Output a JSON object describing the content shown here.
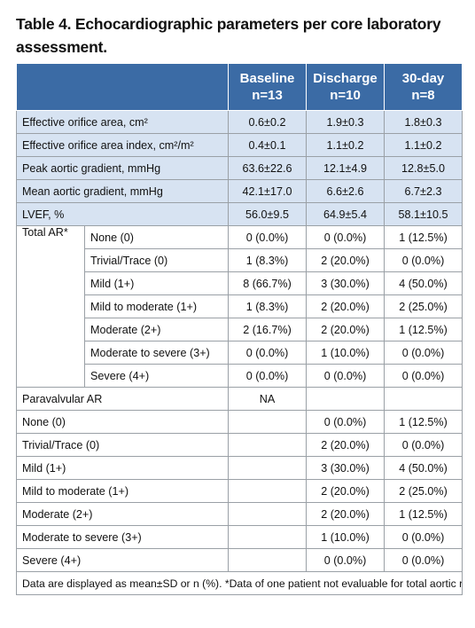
{
  "title": "Table 4. Echocardiographic parameters per core laboratory assessment.",
  "header": {
    "baseline": "Baseline",
    "baseline_n": "n=13",
    "discharge": "Discharge",
    "discharge_n": "n=10",
    "day30": "30-day",
    "day30_n": "n=8"
  },
  "measures": [
    {
      "label": "Effective orifice area, cm²",
      "baseline": "0.6±0.2",
      "discharge": "1.9±0.3",
      "day30": "1.8±0.3"
    },
    {
      "label": "Effective orifice area index, cm²/m²",
      "baseline": "0.4±0.1",
      "discharge": "1.1±0.2",
      "day30": "1.1±0.2"
    },
    {
      "label": "Peak aortic gradient, mmHg",
      "baseline": "63.6±22.6",
      "discharge": "12.1±4.9",
      "day30": "12.8±5.0"
    },
    {
      "label": "Mean aortic gradient, mmHg",
      "baseline": "42.1±17.0",
      "discharge": "6.6±2.6",
      "day30": "6.7±2.3"
    },
    {
      "label": "LVEF, %",
      "baseline": "56.0±9.5",
      "discharge": "64.9±5.4",
      "day30": "58.1±10.5"
    }
  ],
  "total_ar": {
    "label": "Total AR*",
    "rows": [
      {
        "label": "None (0)",
        "baseline": "0 (0.0%)",
        "discharge": "0 (0.0%)",
        "day30": "1 (12.5%)"
      },
      {
        "label": "Trivial/Trace (0)",
        "baseline": "1 (8.3%)",
        "discharge": "2 (20.0%)",
        "day30": "0 (0.0%)"
      },
      {
        "label": "Mild (1+)",
        "baseline": "8 (66.7%)",
        "discharge": "3 (30.0%)",
        "day30": "4 (50.0%)"
      },
      {
        "label": "Mild to moderate (1+)",
        "baseline": "1 (8.3%)",
        "discharge": "2 (20.0%)",
        "day30": "2 (25.0%)"
      },
      {
        "label": "Moderate (2+)",
        "baseline": "2 (16.7%)",
        "discharge": "2 (20.0%)",
        "day30": "1 (12.5%)"
      },
      {
        "label": "Moderate to severe (3+)",
        "baseline": "0 (0.0%)",
        "discharge": "1 (10.0%)",
        "day30": "0 (0.0%)"
      },
      {
        "label": "Severe (4+)",
        "baseline": "0 (0.0%)",
        "discharge": "0 (0.0%)",
        "day30": "0 (0.0%)"
      }
    ]
  },
  "paravalvular": {
    "label": "Paravalvular AR",
    "baseline": "NA",
    "rows": [
      {
        "label": "None (0)",
        "discharge": "0 (0.0%)",
        "day30": "1 (12.5%)"
      },
      {
        "label": "Trivial/Trace (0)",
        "discharge": "2 (20.0%)",
        "day30": "0 (0.0%)"
      },
      {
        "label": "Mild (1+)",
        "discharge": "3 (30.0%)",
        "day30": "4 (50.0%)"
      },
      {
        "label": "Mild to moderate (1+)",
        "discharge": "2 (20.0%)",
        "day30": "2 (25.0%)"
      },
      {
        "label": "Moderate (2+)",
        "discharge": "2 (20.0%)",
        "day30": "1 (12.5%)"
      },
      {
        "label": "Moderate to severe (3+)",
        "discharge": "1 (10.0%)",
        "day30": "0 (0.0%)"
      },
      {
        "label": "Severe (4+)",
        "discharge": "0 (0.0%)",
        "day30": "0 (0.0%)"
      }
    ]
  },
  "footnote": "Data are displayed as mean±SD or n (%). *Data of one patient not evaluable for total aortic regurgitation at baseline. AR: aortic regurgitation",
  "colors": {
    "header_bg": "#3b6ba5",
    "shade_bg": "#d7e3f2",
    "border": "#9aa0a6"
  }
}
